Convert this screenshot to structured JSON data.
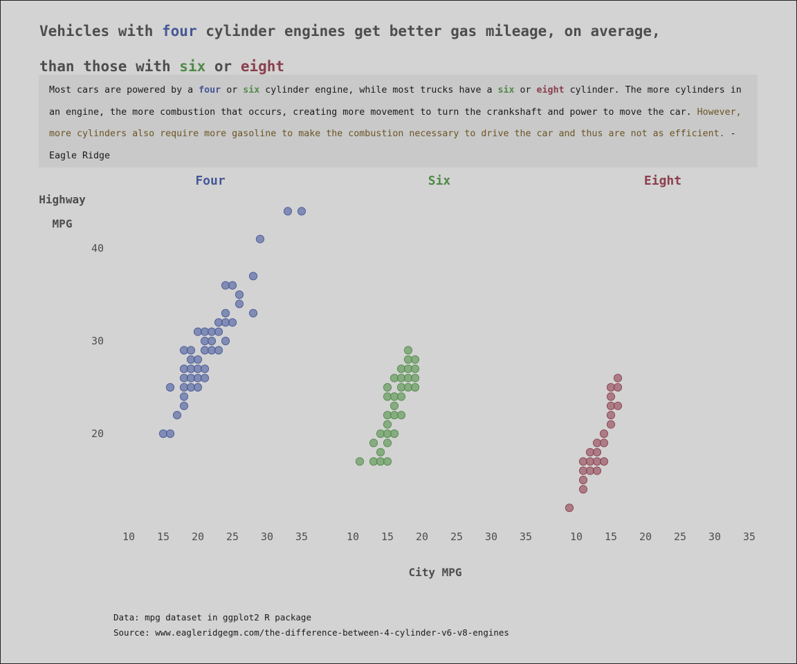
{
  "title": {
    "line1_pre": "Vehicles with ",
    "line1_four": "four",
    "line1_post": " cylinder engines get better gas mileage, on average,",
    "line2_pre": "than those with ",
    "line2_six": "six",
    "line2_mid": " or ",
    "line2_eight": "eight"
  },
  "description": {
    "p1": "Most cars are powered by a ",
    "four": "four",
    "p2": " or ",
    "six": "six",
    "p3": " cylinder engine, while most trucks have a ",
    "six2": "six",
    "p4": " or ",
    "eight": "eight",
    "p5": " cylinder. The more cylinders in an engine, the more combustion that occurs, creating more movement to turn the crankshaft and power to move the car. ",
    "note": "However, more cylinders also require more gasoline to make the combustion necessary to drive the car and thus are not as efficient.",
    "p6": " - Eagle Ridge"
  },
  "footer": {
    "data": "Data: mpg dataset in ggplot2 R package",
    "source": "Source: www.eagleridgegm.com/the-difference-between-4-cylinder-v6-v8-engines"
  },
  "colors": {
    "four": "#465796",
    "six": "#4f8a47",
    "eight": "#8a3f4e",
    "background": "#d3d3d3"
  },
  "chart_data": {
    "type": "scatter",
    "xlabel": "City MPG",
    "ylabel_line1": "Highway",
    "ylabel_line2": "MPG",
    "xlim": [
      10,
      35
    ],
    "ylim": [
      12,
      44
    ],
    "x_ticks": [
      10,
      15,
      20,
      25,
      30,
      35
    ],
    "y_ticks": [
      20,
      30,
      40
    ],
    "grid": false,
    "panels": [
      {
        "name": "Four",
        "color_key": "four",
        "points": [
          [
            15,
            20
          ],
          [
            16,
            20
          ],
          [
            16,
            25
          ],
          [
            17,
            22
          ],
          [
            18,
            23
          ],
          [
            18,
            24
          ],
          [
            18,
            25
          ],
          [
            18,
            26
          ],
          [
            18,
            27
          ],
          [
            18,
            29
          ],
          [
            19,
            25
          ],
          [
            19,
            26
          ],
          [
            19,
            27
          ],
          [
            19,
            28
          ],
          [
            19,
            29
          ],
          [
            20,
            25
          ],
          [
            20,
            26
          ],
          [
            20,
            27
          ],
          [
            20,
            28
          ],
          [
            20,
            31
          ],
          [
            21,
            26
          ],
          [
            21,
            27
          ],
          [
            21,
            29
          ],
          [
            21,
            30
          ],
          [
            21,
            31
          ],
          [
            22,
            29
          ],
          [
            22,
            30
          ],
          [
            22,
            31
          ],
          [
            23,
            29
          ],
          [
            23,
            31
          ],
          [
            23,
            32
          ],
          [
            24,
            30
          ],
          [
            24,
            32
          ],
          [
            24,
            33
          ],
          [
            24,
            36
          ],
          [
            25,
            32
          ],
          [
            25,
            36
          ],
          [
            26,
            34
          ],
          [
            26,
            35
          ],
          [
            28,
            33
          ],
          [
            28,
            37
          ],
          [
            29,
            41
          ],
          [
            33,
            44
          ],
          [
            35,
            44
          ]
        ]
      },
      {
        "name": "Six",
        "color_key": "six",
        "points": [
          [
            11,
            17
          ],
          [
            13,
            17
          ],
          [
            13,
            19
          ],
          [
            14,
            17
          ],
          [
            14,
            18
          ],
          [
            14,
            20
          ],
          [
            15,
            17
          ],
          [
            15,
            19
          ],
          [
            15,
            20
          ],
          [
            15,
            21
          ],
          [
            15,
            22
          ],
          [
            15,
            24
          ],
          [
            15,
            25
          ],
          [
            16,
            20
          ],
          [
            16,
            22
          ],
          [
            16,
            23
          ],
          [
            16,
            24
          ],
          [
            16,
            26
          ],
          [
            17,
            22
          ],
          [
            17,
            24
          ],
          [
            17,
            25
          ],
          [
            17,
            26
          ],
          [
            17,
            27
          ],
          [
            18,
            25
          ],
          [
            18,
            26
          ],
          [
            18,
            27
          ],
          [
            18,
            28
          ],
          [
            18,
            29
          ],
          [
            19,
            25
          ],
          [
            19,
            26
          ],
          [
            19,
            27
          ],
          [
            19,
            28
          ]
        ]
      },
      {
        "name": "Eight",
        "color_key": "eight",
        "points": [
          [
            9,
            12
          ],
          [
            11,
            14
          ],
          [
            11,
            15
          ],
          [
            11,
            16
          ],
          [
            11,
            17
          ],
          [
            12,
            16
          ],
          [
            12,
            17
          ],
          [
            12,
            18
          ],
          [
            13,
            16
          ],
          [
            13,
            17
          ],
          [
            13,
            18
          ],
          [
            13,
            19
          ],
          [
            14,
            17
          ],
          [
            14,
            19
          ],
          [
            14,
            20
          ],
          [
            15,
            21
          ],
          [
            15,
            22
          ],
          [
            15,
            23
          ],
          [
            15,
            24
          ],
          [
            15,
            25
          ],
          [
            16,
            23
          ],
          [
            16,
            25
          ],
          [
            16,
            26
          ]
        ]
      }
    ]
  }
}
